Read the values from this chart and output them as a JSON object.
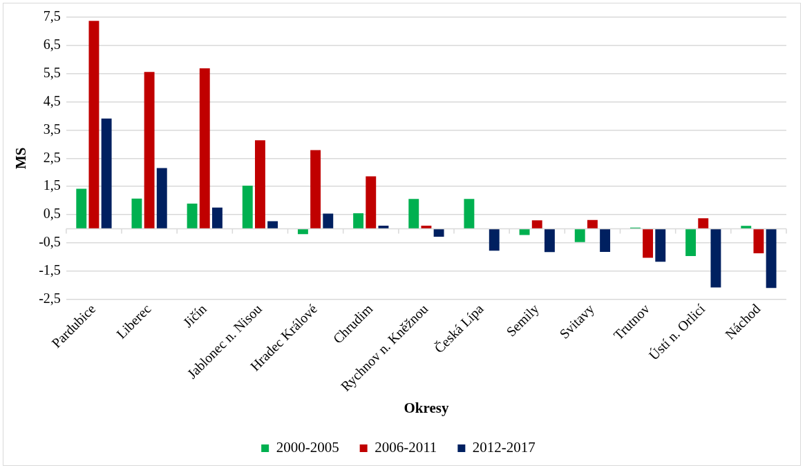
{
  "chart_data": {
    "type": "bar",
    "xlabel": "Okresy",
    "ylabel": "MS",
    "categories": [
      "Pardubice",
      "Liberec",
      "Jičín",
      "Jablonec n. Nisou",
      "Hradec Králové",
      "Chrudim",
      "Rychnov n. Kněžnou",
      "Česká Lípa",
      "Semily",
      "Svitavy",
      "Trutnov",
      "Ústí n. Orlicí",
      "Náchod"
    ],
    "series": [
      {
        "name": "2000-2005",
        "color": "#00b050",
        "values": [
          1.42,
          1.07,
          0.89,
          1.53,
          -0.19,
          0.55,
          1.06,
          1.06,
          -0.22,
          -0.47,
          0.04,
          -0.97,
          0.1
        ]
      },
      {
        "name": "2006-2011",
        "color": "#c00000",
        "values": [
          7.37,
          5.56,
          5.69,
          3.14,
          2.79,
          1.86,
          0.11,
          0.0,
          0.3,
          0.31,
          -1.03,
          0.37,
          -0.87
        ]
      },
      {
        "name": "2012-2017",
        "color": "#002060",
        "values": [
          3.91,
          2.15,
          0.75,
          0.27,
          0.54,
          0.11,
          -0.28,
          -0.78,
          -0.83,
          -0.82,
          -1.17,
          -2.08,
          -2.1
        ]
      }
    ],
    "ylim": [
      -2.5,
      7.5
    ],
    "yticks": [
      {
        "value": -2.5,
        "label": "-2,5"
      },
      {
        "value": -1.5,
        "label": "-1,5"
      },
      {
        "value": -0.5,
        "label": "-0,5"
      },
      {
        "value": 0.5,
        "label": "0,5"
      },
      {
        "value": 1.5,
        "label": "1,5"
      },
      {
        "value": 2.5,
        "label": "2,5"
      },
      {
        "value": 3.5,
        "label": "3,5"
      },
      {
        "value": 4.5,
        "label": "4,5"
      },
      {
        "value": 5.5,
        "label": "5,5"
      },
      {
        "value": 6.5,
        "label": "6,5"
      },
      {
        "value": 7.5,
        "label": "7,5"
      }
    ],
    "grid": "y",
    "legend": "bottom"
  }
}
